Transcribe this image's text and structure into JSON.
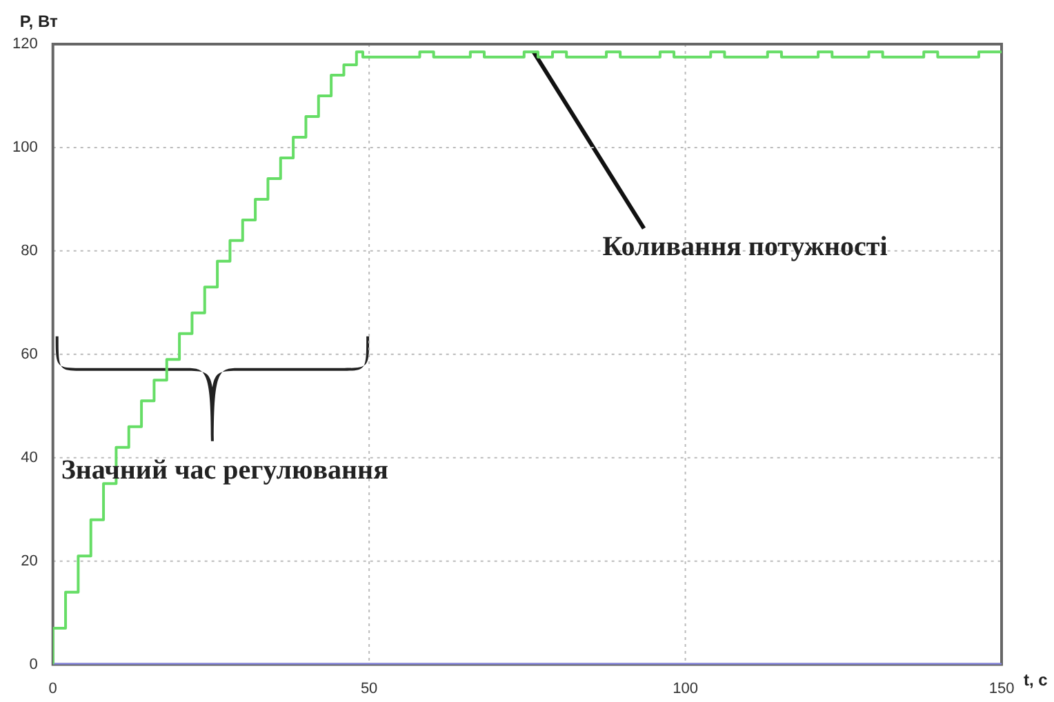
{
  "chart_data": {
    "type": "step",
    "xlabel": "t, c",
    "ylabel": "P, Вт",
    "xlim": [
      0,
      150
    ],
    "xticks": [
      0,
      50,
      100,
      150
    ],
    "ylim": [
      0,
      120
    ],
    "yticks": [
      0,
      20,
      40,
      60,
      80,
      100,
      120
    ],
    "grid": true,
    "legend": false,
    "marker": "none",
    "series": [
      {
        "color": "#66dd66",
        "x": [
          0,
          2,
          4,
          6,
          8,
          10,
          12,
          14,
          16,
          18,
          20,
          22,
          24,
          26,
          28,
          30,
          32,
          34,
          36,
          38,
          40,
          42,
          44,
          46,
          48,
          49,
          58,
          60.2,
          66,
          68.2,
          74.5,
          76.7,
          79,
          81.2,
          87.5,
          89.7,
          96,
          98.2,
          104,
          106.2,
          113,
          115.2,
          121,
          123.2,
          129,
          131.2,
          137.7,
          139.9,
          146.4,
          148.6,
          150
        ],
        "values": [
          0,
          7,
          14,
          21,
          28,
          35,
          42,
          46,
          51,
          55,
          59,
          64,
          68,
          73,
          78,
          82,
          86,
          90,
          94,
          98,
          102,
          106,
          110,
          114,
          116,
          118.5,
          117.5,
          118.5,
          117.5,
          118.5,
          117.5,
          118.5,
          117.5,
          118.5,
          117.5,
          118.5,
          117.5,
          118.5,
          117.5,
          118.5,
          117.5,
          118.5,
          117.5,
          118.5,
          117.5,
          118.5,
          117.5,
          118.5,
          117.5,
          118.5,
          118.5
        ]
      },
      {
        "color": "#8888ee",
        "x": [
          0,
          150
        ],
        "values": [
          0,
          0
        ]
      }
    ],
    "annotations": [
      {
        "text": "Коливання потужності",
        "x": 76,
        "y": 118.5
      },
      "Значний час регулювання"
    ]
  }
}
